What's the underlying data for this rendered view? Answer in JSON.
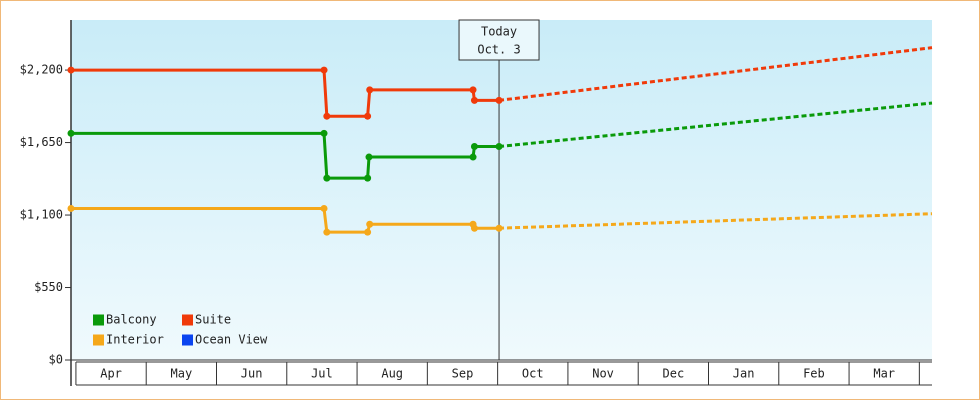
{
  "chart_data": {
    "type": "step-line",
    "categories": [
      "Apr",
      "May",
      "Jun",
      "Jul",
      "Aug",
      "Sep",
      "Oct",
      "Nov",
      "Dec",
      "Jan",
      "Feb",
      "Mar",
      null
    ],
    "xlim": [
      -0.07,
      12.18
    ],
    "ylim": [
      0,
      2580
    ],
    "yticks": [
      {
        "value": 0,
        "label": "$0"
      },
      {
        "value": 550,
        "label": "$550"
      },
      {
        "value": 1100,
        "label": "$1,100"
      },
      {
        "value": 1650,
        "label": "$1,650"
      },
      {
        "value": 2200,
        "label": "$2,200"
      }
    ],
    "annotation": {
      "lines": [
        "Today",
        "Oct. 3"
      ],
      "x": 6.02
    },
    "series": [
      {
        "name": "Balcony",
        "color": "#0a9a0a",
        "x": [
          -0.07,
          3.53,
          3.57,
          4.15,
          4.17,
          5.65,
          5.67,
          6.02
        ],
        "values": [
          1720,
          1720,
          1380,
          1380,
          1540,
          1540,
          1620,
          1620
        ],
        "forecast": {
          "x": [
            6.02,
            12.18
          ],
          "values": [
            1620,
            1950
          ]
        }
      },
      {
        "name": "Suite",
        "color": "#f03a0a",
        "x": [
          -0.07,
          3.53,
          3.57,
          4.15,
          4.18,
          5.65,
          5.67,
          6.02
        ],
        "values": [
          2200,
          2200,
          1850,
          1850,
          2050,
          2050,
          1970,
          1970
        ],
        "forecast": {
          "x": [
            6.02,
            12.18
          ],
          "values": [
            1970,
            2370
          ]
        }
      },
      {
        "name": "Interior",
        "color": "#f5a81a",
        "x": [
          -0.07,
          3.53,
          3.57,
          4.15,
          4.18,
          5.65,
          5.67,
          6.02
        ],
        "values": [
          1150,
          1150,
          970,
          970,
          1030,
          1030,
          1000,
          1000
        ],
        "forecast": {
          "x": [
            6.02,
            12.18
          ],
          "values": [
            1000,
            1110
          ]
        }
      },
      {
        "name": "Ocean View",
        "color": "#0a44f0"
      }
    ]
  }
}
